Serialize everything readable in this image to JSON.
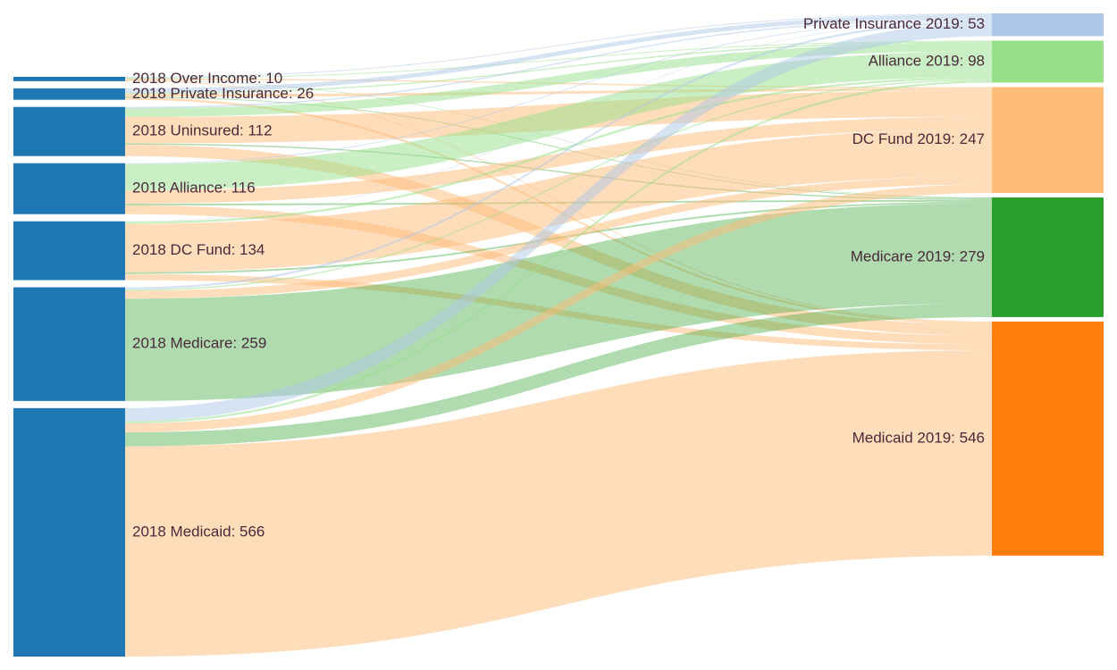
{
  "diagram": {
    "type": "sankey",
    "left_nodes": [
      {
        "id": "l_over",
        "label": "2018 Over Income: 10",
        "value": 10,
        "color": "#1f77b4"
      },
      {
        "id": "l_priv",
        "label": "2018 Private Insurance: 26",
        "value": 26,
        "color": "#1f77b4"
      },
      {
        "id": "l_unin",
        "label": "2018 Uninsured: 112",
        "value": 112,
        "color": "#1f77b4"
      },
      {
        "id": "l_alli",
        "label": "2018 Alliance: 116",
        "value": 116,
        "color": "#1f77b4"
      },
      {
        "id": "l_dcf",
        "label": "2018 DC Fund: 134",
        "value": 134,
        "color": "#1f77b4"
      },
      {
        "id": "l_medr",
        "label": "2018 Medicare: 259",
        "value": 259,
        "color": "#1f77b4"
      },
      {
        "id": "l_medc",
        "label": "2018 Medicaid: 566",
        "value": 566,
        "color": "#1f77b4"
      }
    ],
    "right_nodes": [
      {
        "id": "r_priv",
        "label": "Private Insurance 2019: 53",
        "value": 53,
        "color": "#aec7e8"
      },
      {
        "id": "r_alli",
        "label": "Alliance 2019: 98",
        "value": 98,
        "color": "#98df8a"
      },
      {
        "id": "r_dcf",
        "label": "DC Fund 2019: 247",
        "value": 247,
        "color": "#ffbb78"
      },
      {
        "id": "r_medr",
        "label": "Medicare 2019: 279",
        "value": 279,
        "color": "#2ca02c"
      },
      {
        "id": "r_medc",
        "label": "Medicaid 2019: 546",
        "value": 546,
        "color": "#ff7f0e"
      }
    ],
    "link_colors": {
      "r_priv": "#aec7e8",
      "r_alli": "#98df8a",
      "r_dcf": "#ffbb78",
      "r_medr": "#2ca02c",
      "r_medc": "#ffbb78"
    },
    "links": [
      {
        "source": "l_over",
        "target": "r_priv",
        "value": 2
      },
      {
        "source": "l_over",
        "target": "r_alli",
        "value": 2
      },
      {
        "source": "l_over",
        "target": "r_dcf",
        "value": 3
      },
      {
        "source": "l_over",
        "target": "r_medr",
        "value": 1
      },
      {
        "source": "l_over",
        "target": "r_medc",
        "value": 2
      },
      {
        "source": "l_priv",
        "target": "r_priv",
        "value": 10
      },
      {
        "source": "l_priv",
        "target": "r_alli",
        "value": 3
      },
      {
        "source": "l_priv",
        "target": "r_dcf",
        "value": 6
      },
      {
        "source": "l_priv",
        "target": "r_medr",
        "value": 2
      },
      {
        "source": "l_priv",
        "target": "r_medc",
        "value": 5
      },
      {
        "source": "l_unin",
        "target": "r_priv",
        "value": 3
      },
      {
        "source": "l_unin",
        "target": "r_alli",
        "value": 20
      },
      {
        "source": "l_unin",
        "target": "r_dcf",
        "value": 60
      },
      {
        "source": "l_unin",
        "target": "r_medr",
        "value": 3
      },
      {
        "source": "l_unin",
        "target": "r_medc",
        "value": 26
      },
      {
        "source": "l_alli",
        "target": "r_priv",
        "value": 2
      },
      {
        "source": "l_alli",
        "target": "r_alli",
        "value": 60
      },
      {
        "source": "l_alli",
        "target": "r_dcf",
        "value": 30
      },
      {
        "source": "l_alli",
        "target": "r_medr",
        "value": 4
      },
      {
        "source": "l_alli",
        "target": "r_medc",
        "value": 20
      },
      {
        "source": "l_dcf",
        "target": "r_priv",
        "value": 1
      },
      {
        "source": "l_dcf",
        "target": "r_alli",
        "value": 5
      },
      {
        "source": "l_dcf",
        "target": "r_dcf",
        "value": 110
      },
      {
        "source": "l_dcf",
        "target": "r_medr",
        "value": 4
      },
      {
        "source": "l_dcf",
        "target": "r_medc",
        "value": 14
      },
      {
        "source": "l_medr",
        "target": "r_priv",
        "value": 5
      },
      {
        "source": "l_medr",
        "target": "r_alli",
        "value": 3
      },
      {
        "source": "l_medr",
        "target": "r_dcf",
        "value": 18
      },
      {
        "source": "l_medr",
        "target": "r_medr",
        "value": 233
      },
      {
        "source": "l_medc",
        "target": "r_priv",
        "value": 30
      },
      {
        "source": "l_medc",
        "target": "r_alli",
        "value": 5
      },
      {
        "source": "l_medc",
        "target": "r_dcf",
        "value": 20
      },
      {
        "source": "l_medc",
        "target": "r_medr",
        "value": 32
      },
      {
        "source": "l_medc",
        "target": "r_medc",
        "value": 479
      }
    ]
  }
}
